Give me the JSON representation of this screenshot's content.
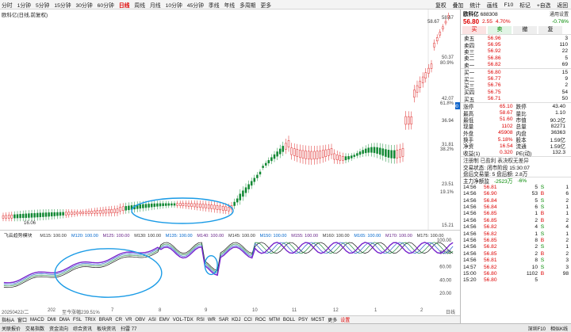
{
  "toolbar": {
    "periods": [
      "分时",
      "1分钟",
      "5分钟",
      "15分钟",
      "30分钟",
      "60分钟",
      "日线",
      "周线",
      "月线",
      "10分钟",
      "45分钟",
      "季线",
      "年线",
      "多周期",
      "更多"
    ],
    "active": "日线",
    "right": [
      "复权",
      "叠加",
      "统计",
      "画线",
      "F10",
      "标记",
      "+自选",
      "返回"
    ]
  },
  "chart": {
    "title": "欧科亿(日线,前复权)",
    "price_axis": [
      "58.67",
      "50.37",
      "42.07",
      "36.94",
      "31.81",
      "23.51",
      "19.1%",
      "15.21"
    ],
    "pct_axis": [
      "80.9%",
      "61.8%",
      "38.2%"
    ],
    "hi_label": "58.67",
    "lo_label": "16.06",
    "cur_price": "43.90",
    "dates": [
      "20250422/二",
      "202",
      "至今涨幅239.51%",
      "7",
      "8",
      "9",
      "10",
      "11",
      "12",
      "1",
      "2"
    ],
    "date_axis_right": "日线"
  },
  "indicator": {
    "name": "飞云趋势模块",
    "labels": [
      "M115: 100.00",
      "M120: 100.00",
      "M125: 100.00",
      "M130: 100.00",
      "M135: 100.00",
      "M140: 100.00",
      "M145: 100.00",
      "M150: 100.00",
      "M155: 100.00",
      "M160: 100.00",
      "M165: 100.00",
      "M170: 100.00",
      "M175: 100.00"
    ],
    "axis": [
      "100.00",
      "80.00",
      "60.00",
      "40.00",
      "20.00"
    ]
  },
  "bottom_tabs": [
    "指标A",
    "窗口",
    "MACD",
    "DMI",
    "DMA",
    "FSL",
    "TRIX",
    "BRAR",
    "CR",
    "VR",
    "OBV",
    "ASI",
    "EMV",
    "VOL-TDX",
    "RSI",
    "WR",
    "SAR",
    "KDJ",
    "CCI",
    "ROC",
    "MTM",
    "BOLL",
    "PSY",
    "MCST",
    "更多",
    "设置"
  ],
  "taskbar": [
    "关联报价",
    "交易指数",
    "资金流向",
    "综合资讯",
    "板块资讯",
    "扫雷 77"
  ],
  "taskbar_right": [
    "深圳F10",
    "相似K线"
  ],
  "panel": {
    "name": "欧科亿",
    "code": "688308",
    "setting": "通用设置",
    "price": "56.80",
    "chg": "2.55",
    "pct": "4.70%",
    "weibi": "-0.76%",
    "buttons": [
      "买",
      "卖",
      "撤",
      "复"
    ],
    "asks": [
      [
        "卖五",
        "56.96",
        "3"
      ],
      [
        "卖四",
        "56.95",
        "110"
      ],
      [
        "卖三",
        "56.92",
        "22"
      ],
      [
        "卖二",
        "56.86",
        "5"
      ],
      [
        "卖一",
        "56.82",
        "69"
      ]
    ],
    "bids": [
      [
        "买一",
        "56.80",
        "15"
      ],
      [
        "买二",
        "56.77",
        "9"
      ],
      [
        "买三",
        "56.76",
        "2"
      ],
      [
        "买四",
        "56.75",
        "54"
      ],
      [
        "买五",
        "56.71",
        "50"
      ]
    ],
    "stats": [
      [
        "涨停",
        "65.10",
        "跌停",
        "43.40"
      ],
      [
        "最高",
        "58.67",
        "量比",
        "1.10"
      ],
      [
        "最低",
        "51.60",
        "市值",
        "90.2亿"
      ],
      [
        "现量",
        "1102",
        "总量",
        "82271"
      ],
      [
        "外盘",
        "45908",
        "内盘",
        "36363"
      ],
      [
        "换手",
        "5.18%",
        "股本",
        "1.59亿"
      ],
      [
        "净资",
        "16.54",
        "流通",
        "1.59亿"
      ],
      [
        "收益(1)",
        "0.320",
        "PE(动)",
        "132.3"
      ]
    ],
    "notes": [
      "注册制 已盈利 表决权无差异",
      "交易状态: 闭市阶段 15:30:07",
      "盘后交易量: 5  盘后额: 2.8万"
    ],
    "flow": {
      "label": "主力净额监",
      "val": "-2523万",
      "pct": "-6%"
    },
    "ticks": [
      [
        "14:56",
        "56.81",
        "5",
        "S",
        "1"
      ],
      [
        "14:56",
        "56.90",
        "53",
        "B",
        "6"
      ],
      [
        "14:56",
        "56.84",
        "5",
        "S",
        "2"
      ],
      [
        "14:56",
        "56.84",
        "6",
        "S",
        "1"
      ],
      [
        "14:56",
        "56.85",
        "1",
        "B",
        "1"
      ],
      [
        "14:56",
        "56.85",
        "2",
        "B",
        "2"
      ],
      [
        "14:56",
        "56.82",
        "4",
        "S",
        "4"
      ],
      [
        "14:56",
        "56.82",
        "1",
        "S",
        "1"
      ],
      [
        "14:56",
        "56.85",
        "8",
        "B",
        "2"
      ],
      [
        "14:56",
        "56.82",
        "2",
        "S",
        "1"
      ],
      [
        "14:56",
        "56.85",
        "2",
        "B",
        "2"
      ],
      [
        "14:56",
        "56.81",
        "8",
        "S",
        "3"
      ],
      [
        "14:57",
        "56.82",
        "10",
        "S",
        "3"
      ],
      [
        "15:00",
        "56.80",
        "1102",
        "B",
        "98"
      ],
      [
        "15:20",
        "56.80",
        "5",
        "",
        ""
      ]
    ]
  },
  "colors": {
    "up": "#dd2222",
    "down": "#118833",
    "ma": "#2266cc",
    "annotation": "#1a9be6",
    "ind_purple": "#6622cc"
  }
}
